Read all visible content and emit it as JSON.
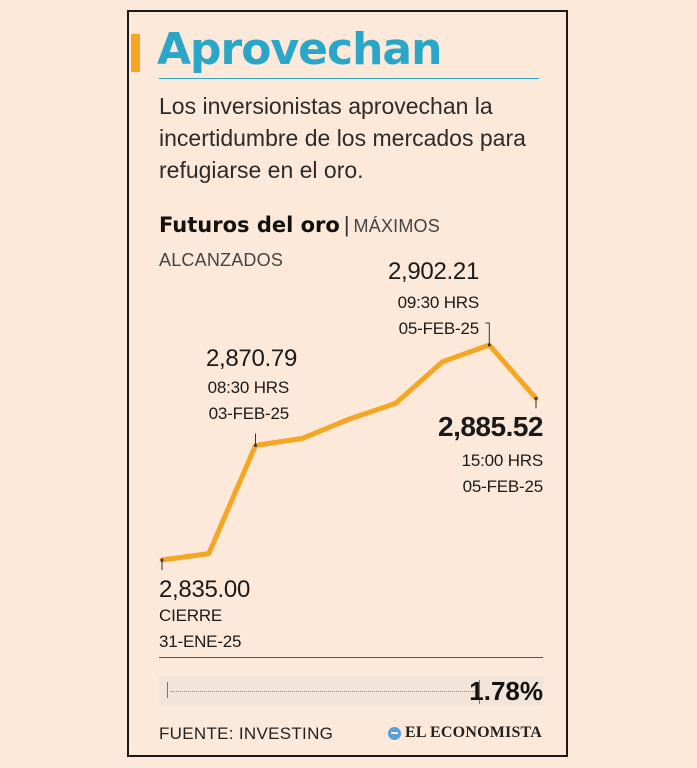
{
  "header": {
    "headline": "Aprovechan",
    "dek": "Los inversionistas aprovechan la incertidumbre de los mercados para refugiarse en el oro."
  },
  "chart_data": {
    "type": "line",
    "title": "Futuros del oro",
    "subtitle": "MÁXIMOS ALCANZADOS",
    "color": "#f5a623",
    "values": [
      2835.0,
      2837.0,
      2870.79,
      2873.0,
      2879.0,
      2884.0,
      2897.0,
      2902.21,
      2885.52
    ],
    "ylim": [
      2835.0,
      2902.21
    ],
    "annotations": [
      {
        "index": 0,
        "value": "2,835.00",
        "line1": "CIERRE",
        "line2": "31-ENE-25"
      },
      {
        "index": 2,
        "value": "2,870.79",
        "line1": "08:30 HRS",
        "line2": "03-FEB-25"
      },
      {
        "index": 7,
        "value": "2,902.21",
        "line1": "09:30 HRS",
        "line2": "05-FEB-25"
      },
      {
        "index": 8,
        "value": "2,885.52",
        "line1": "15:00 HRS",
        "line2": "05-FEB-25"
      }
    ],
    "change": "1.78%"
  },
  "footer": {
    "source": "FUENTE: INVESTING",
    "brand": "EL ECONOMISTA",
    "brand_icon": "el-economista-logo-icon"
  }
}
